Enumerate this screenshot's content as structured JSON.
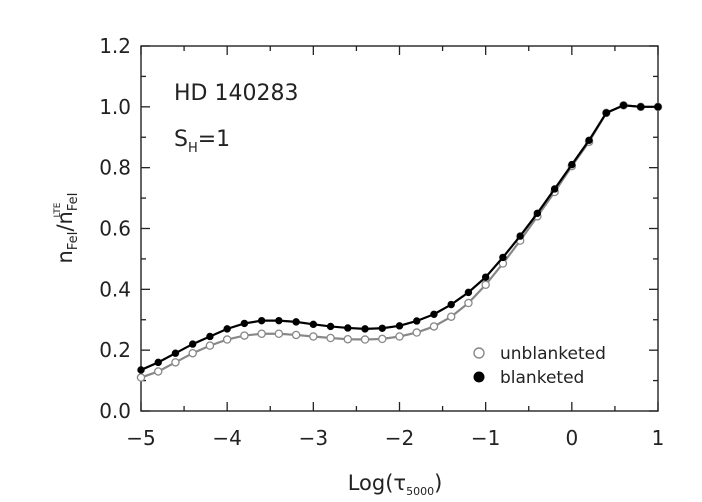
{
  "chart_data": {
    "type": "line",
    "xlabel": "Log(τ",
    "xlabel_sub": "5000",
    "xlabel_close": ")",
    "ylabel_main": "n",
    "ylabel_sub1": "FeI",
    "ylabel_sep": "/n",
    "ylabel_sub2": "FeI",
    "ylabel_sup": "LTE",
    "xlim": [
      -5,
      1
    ],
    "ylim": [
      0.0,
      1.2
    ],
    "xticks": [
      -5,
      -4,
      -3,
      -2,
      -1,
      0,
      1
    ],
    "xtick_labels": [
      "−5",
      "−4",
      "−3",
      "−2",
      "−1",
      "0",
      "1"
    ],
    "yticks": [
      0.0,
      0.2,
      0.4,
      0.6,
      0.8,
      1.0,
      1.2
    ],
    "ytick_labels": [
      "0.0",
      "0.2",
      "0.4",
      "0.6",
      "0.8",
      "1.0",
      "1.2"
    ],
    "annotation_star": "HD 140283",
    "annotation_sh_main": "S",
    "annotation_sh_sub": "H",
    "annotation_sh_val": "=1",
    "legend_position": "bottom-right",
    "series": [
      {
        "name": "unblanketed",
        "marker": "open-circle",
        "color": "#888888",
        "x": [
          -5.0,
          -4.8,
          -4.6,
          -4.4,
          -4.2,
          -4.0,
          -3.8,
          -3.6,
          -3.4,
          -3.2,
          -3.0,
          -2.8,
          -2.6,
          -2.4,
          -2.2,
          -2.0,
          -1.8,
          -1.6,
          -1.4,
          -1.2,
          -1.0,
          -0.8,
          -0.6,
          -0.4,
          -0.2,
          0.0,
          0.2,
          0.4,
          0.6,
          0.8,
          1.0
        ],
        "y": [
          0.11,
          0.13,
          0.16,
          0.19,
          0.215,
          0.235,
          0.248,
          0.254,
          0.254,
          0.25,
          0.245,
          0.24,
          0.236,
          0.235,
          0.237,
          0.245,
          0.258,
          0.278,
          0.31,
          0.355,
          0.415,
          0.485,
          0.56,
          0.64,
          0.72,
          0.805,
          0.885,
          0.98,
          1.005,
          1.0,
          1.0
        ]
      },
      {
        "name": "blanketed",
        "marker": "filled-circle",
        "color": "#000000",
        "x": [
          -5.0,
          -4.8,
          -4.6,
          -4.4,
          -4.2,
          -4.0,
          -3.8,
          -3.6,
          -3.4,
          -3.2,
          -3.0,
          -2.8,
          -2.6,
          -2.4,
          -2.2,
          -2.0,
          -1.8,
          -1.6,
          -1.4,
          -1.2,
          -1.0,
          -0.8,
          -0.6,
          -0.4,
          -0.2,
          0.0,
          0.2,
          0.4,
          0.6,
          0.8,
          1.0
        ],
        "y": [
          0.135,
          0.16,
          0.19,
          0.22,
          0.245,
          0.27,
          0.288,
          0.297,
          0.297,
          0.293,
          0.285,
          0.278,
          0.273,
          0.27,
          0.272,
          0.28,
          0.296,
          0.318,
          0.35,
          0.39,
          0.44,
          0.505,
          0.575,
          0.65,
          0.73,
          0.81,
          0.89,
          0.98,
          1.005,
          1.0,
          1.0
        ]
      }
    ]
  }
}
